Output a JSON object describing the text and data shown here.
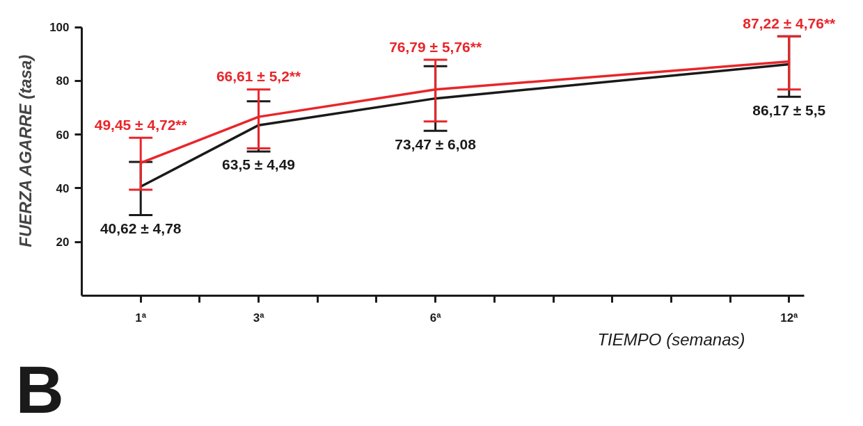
{
  "chart_data": {
    "type": "line",
    "x": [
      1,
      3,
      6,
      12
    ],
    "xlim": [
      0,
      12.26
    ],
    "xticks": [
      {
        "value": 1,
        "label": "1ª"
      },
      {
        "value": 2,
        "label": null
      },
      {
        "value": 3,
        "label": "3ª"
      },
      {
        "value": 4,
        "label": null
      },
      {
        "value": 5,
        "label": null
      },
      {
        "value": 6,
        "label": "6ª"
      },
      {
        "value": 7,
        "label": null
      },
      {
        "value": 8,
        "label": null
      },
      {
        "value": 9,
        "label": null
      },
      {
        "value": 10,
        "label": null
      },
      {
        "value": 11,
        "label": null
      },
      {
        "value": 12,
        "label": "12ª"
      }
    ],
    "ylim": [
      0,
      100
    ],
    "yticks": [
      20,
      40,
      60,
      80,
      100
    ],
    "xlabel": "TIEMPO (semanas)",
    "ylabel": "FUERZA  AGARRE (tasa)",
    "annotations": [
      "B"
    ],
    "grid": false,
    "marker": "none",
    "line_style": "solid",
    "series": [
      {
        "color": "#1a1a1a",
        "values": [
          40.62,
          63.5,
          73.47,
          86.17
        ],
        "errors": [
          [
            30.0,
            49.8
          ],
          [
            53.7,
            72.4
          ],
          [
            61.4,
            85.5
          ],
          [
            74.1,
            96.6
          ]
        ],
        "value_labels": [
          "40,62 ± 4,78",
          "63,5 ± 4,49",
          "73,47 ± 6,08",
          "86,17 ± 5,5"
        ]
      },
      {
        "color": "#e8262a",
        "values": [
          49.45,
          66.61,
          76.79,
          87.22
        ],
        "errors": [
          [
            39.5,
            58.8
          ],
          [
            54.9,
            76.8
          ],
          [
            64.9,
            87.9
          ],
          [
            76.8,
            96.6
          ]
        ],
        "value_labels": [
          "49,45 ± 4,72**",
          "66,61 ± 5,2**",
          "76,79 ± 5,76**",
          "87,22 ± 4,76**"
        ]
      }
    ]
  }
}
